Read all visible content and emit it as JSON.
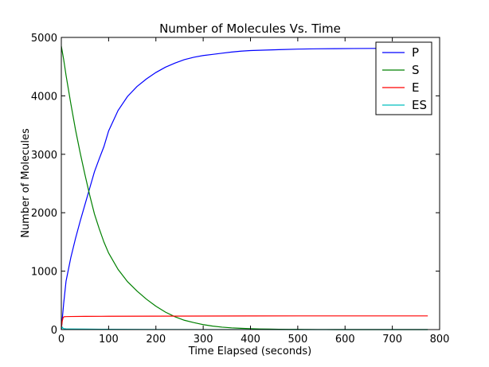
{
  "chart_data": {
    "type": "line",
    "title": "Number of Molecules Vs. Time",
    "xlabel": "Time Elapsed (seconds)",
    "ylabel": "Number of Molecules",
    "xlim": [
      0,
      800
    ],
    "ylim": [
      0,
      5000
    ],
    "xticks": [
      "0",
      "100",
      "200",
      "300",
      "400",
      "500",
      "600",
      "700",
      "800"
    ],
    "yticks": [
      "0",
      "1000",
      "2000",
      "3000",
      "4000",
      "5000"
    ],
    "grid": false,
    "legend_position": "top-right",
    "series": [
      {
        "name": "P",
        "color": "#0000ff",
        "x": [
          0,
          5,
          10,
          20,
          30,
          40,
          50,
          60,
          70,
          80,
          90,
          100,
          120,
          140,
          160,
          180,
          200,
          220,
          240,
          260,
          280,
          300,
          320,
          340,
          360,
          380,
          400,
          420,
          440,
          460,
          500,
          540,
          580,
          620,
          660,
          700,
          740,
          775
        ],
        "y": [
          0,
          450,
          830,
          1230,
          1560,
          1860,
          2140,
          2420,
          2700,
          2920,
          3130,
          3400,
          3750,
          3990,
          4160,
          4290,
          4400,
          4490,
          4560,
          4620,
          4660,
          4690,
          4710,
          4730,
          4750,
          4765,
          4775,
          4780,
          4785,
          4790,
          4800,
          4805,
          4808,
          4810,
          4812,
          4813,
          4814,
          4815
        ]
      },
      {
        "name": "S",
        "color": "#008000",
        "x": [
          0,
          5,
          10,
          20,
          30,
          40,
          50,
          60,
          70,
          80,
          90,
          100,
          120,
          140,
          160,
          180,
          200,
          220,
          240,
          260,
          280,
          300,
          320,
          340,
          360,
          380,
          400,
          420,
          440,
          460,
          480,
          500,
          520,
          540,
          560,
          580,
          600,
          640,
          680,
          720,
          775
        ],
        "y": [
          4850,
          4620,
          4350,
          3870,
          3420,
          3020,
          2650,
          2300,
          1980,
          1730,
          1500,
          1310,
          1030,
          820,
          660,
          520,
          400,
          300,
          220,
          160,
          120,
          85,
          60,
          42,
          30,
          22,
          16,
          11,
          8,
          6,
          4,
          3,
          2,
          1,
          1,
          0,
          0,
          0,
          0,
          0,
          0
        ]
      },
      {
        "name": "E",
        "color": "#ff0000",
        "x": [
          0,
          2,
          4,
          6,
          10,
          20,
          50,
          100,
          200,
          300,
          400,
          500,
          600,
          700,
          775
        ],
        "y": [
          20,
          150,
          210,
          220,
          222,
          224,
          226,
          228,
          230,
          232,
          233,
          234,
          234,
          234,
          234
        ]
      },
      {
        "name": "ES",
        "color": "#00bfbf",
        "x": [
          0,
          2,
          4,
          6,
          10,
          20,
          50,
          100,
          150,
          200,
          300,
          400,
          500,
          600,
          700,
          775
        ],
        "y": [
          0,
          40,
          20,
          15,
          12,
          10,
          8,
          5,
          3,
          2,
          1,
          1,
          0,
          0,
          0,
          0
        ]
      }
    ]
  }
}
